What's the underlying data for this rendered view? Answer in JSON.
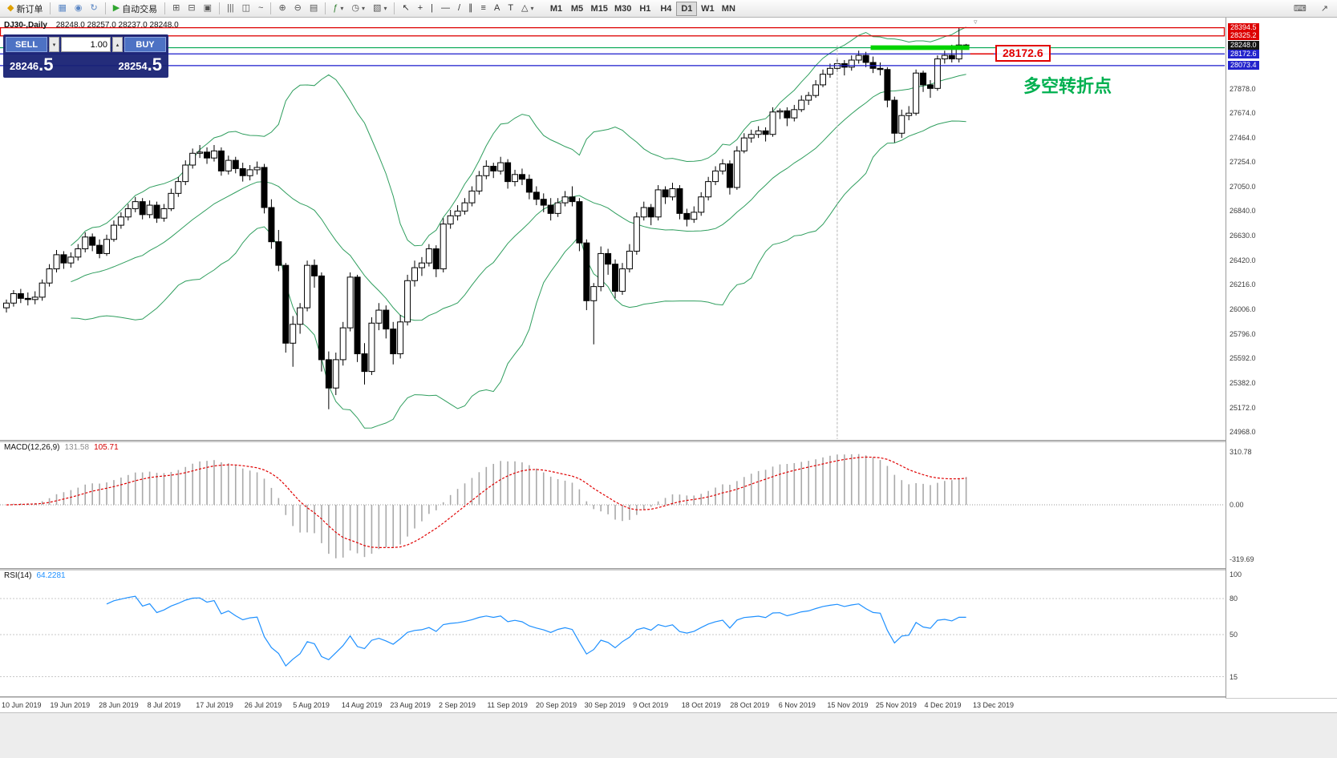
{
  "toolbar": {
    "groups": [
      {
        "items": [
          {
            "name": "new-order-button",
            "icon": "new-order-icon",
            "glyph": "◆",
            "glyph_color": "#dfa000",
            "label": "新订单"
          }
        ]
      },
      {
        "items": [
          {
            "name": "new-chart-button",
            "icon": "chart-window-icon",
            "glyph": "▦",
            "glyph_color": "#5b87c5"
          },
          {
            "name": "profiles-button",
            "icon": "globe-icon",
            "glyph": "◉",
            "glyph_color": "#5b87c5"
          },
          {
            "name": "refresh-button",
            "icon": "refresh-icon",
            "glyph": "↻",
            "glyph_color": "#5b87c5"
          }
        ]
      },
      {
        "items": [
          {
            "name": "autotrading-button",
            "icon": "autotrading-play-icon",
            "glyph": "▶",
            "glyph_color": "#2fa52f",
            "label": "自动交易"
          }
        ]
      },
      {
        "items": [
          {
            "name": "tile-windows-button",
            "icon": "tile-windows-icon",
            "glyph": "⊞",
            "glyph_color": "#555555"
          },
          {
            "name": "tile-horizontal-button",
            "icon": "tile-horizontal-icon",
            "glyph": "⊟",
            "glyph_color": "#555555"
          },
          {
            "name": "cascade-windows-button",
            "icon": "cascade-icon",
            "glyph": "▣",
            "glyph_color": "#555555"
          }
        ]
      },
      {
        "items": [
          {
            "name": "bar-chart-button",
            "icon": "bar-chart-icon",
            "glyph": "|||",
            "glyph_color": "#555555"
          },
          {
            "name": "candlestick-chart-button",
            "icon": "candlestick-icon",
            "glyph": "◫",
            "glyph_color": "#555555"
          },
          {
            "name": "line-chart-button",
            "icon": "line-chart-icon",
            "glyph": "~",
            "glyph_color": "#555555"
          }
        ]
      },
      {
        "items": [
          {
            "name": "zoom-in-button",
            "icon": "zoom-in-icon",
            "glyph": "⊕",
            "glyph_color": "#555555"
          },
          {
            "name": "zoom-out-button",
            "icon": "zoom-out-icon",
            "glyph": "⊖",
            "glyph_color": "#555555"
          },
          {
            "name": "grid-button",
            "icon": "grid-icon",
            "glyph": "▤",
            "glyph_color": "#555555"
          }
        ]
      },
      {
        "items": [
          {
            "name": "indicators-button",
            "icon": "indicators-icon",
            "glyph": "ƒ",
            "glyph_color": "#2f7d2f",
            "caret": true
          },
          {
            "name": "periods-button",
            "icon": "clock-icon",
            "glyph": "◷",
            "glyph_color": "#555555",
            "caret": true
          },
          {
            "name": "templates-button",
            "icon": "template-icon",
            "glyph": "▧",
            "glyph_color": "#555555",
            "caret": true
          }
        ]
      },
      {
        "items": [
          {
            "name": "cursor-tool-button",
            "icon": "cursor-icon",
            "glyph": "↖",
            "glyph_color": "#333333"
          },
          {
            "name": "crosshair-tool-button",
            "icon": "crosshair-icon",
            "glyph": "+",
            "glyph_color": "#333333"
          },
          {
            "name": "vertical-line-tool-button",
            "icon": "vertical-line-icon",
            "glyph": "|",
            "glyph_color": "#333333"
          },
          {
            "name": "horizontal-line-tool-button",
            "icon": "horizontal-line-icon",
            "glyph": "—",
            "glyph_color": "#333333"
          },
          {
            "name": "trendline-tool-button",
            "icon": "trendline-icon",
            "glyph": "/",
            "glyph_color": "#333333"
          },
          {
            "name": "channel-tool-button",
            "icon": "channel-icon",
            "glyph": "∥",
            "glyph_color": "#333333"
          },
          {
            "name": "fibonacci-tool-button",
            "icon": "fibonacci-icon",
            "glyph": "≡",
            "glyph_color": "#333333"
          },
          {
            "name": "text-tool-button",
            "icon": "text-icon",
            "glyph": "A",
            "glyph_color": "#333333"
          },
          {
            "name": "label-tool-button",
            "icon": "label-icon",
            "glyph": "T",
            "glyph_color": "#333333"
          },
          {
            "name": "shapes-tool-button",
            "icon": "shapes-icon",
            "glyph": "△",
            "glyph_color": "#333333",
            "caret": true
          }
        ]
      }
    ],
    "timeframes": [
      {
        "label": "M1"
      },
      {
        "label": "M5"
      },
      {
        "label": "M15"
      },
      {
        "label": "M30"
      },
      {
        "label": "H1"
      },
      {
        "label": "H4"
      },
      {
        "label": "D1",
        "active": true
      },
      {
        "label": "W1"
      },
      {
        "label": "MN"
      }
    ],
    "right_icons": [
      {
        "name": "print-button",
        "icon": "print-icon",
        "glyph": "⌨"
      },
      {
        "name": "fullscreen-button",
        "icon": "fullscreen-icon",
        "glyph": "↗"
      }
    ]
  },
  "order_panel": {
    "sell_label": "SELL",
    "buy_label": "BUY",
    "volume": "1.00",
    "volume_down_glyph": "▾",
    "volume_up_glyph": "▴",
    "sell_price_main": "28246",
    "sell_price_big": ".5",
    "buy_price_main": "28254",
    "buy_price_big": ".5"
  },
  "chart_info": {
    "symbol_period": "DJ30-,Daily",
    "ohlc": "28248.0 28257.0 28237.0 28248.0"
  },
  "macd_panel": {
    "name": "MACD(12,26,9)",
    "main_value": "131.58",
    "signal_value": "105.71"
  },
  "rsi_panel": {
    "name": "RSI(14)",
    "value": "64.2281"
  },
  "annotations": {
    "price_callout": "28172.6",
    "callout_color": "#e10000",
    "note": "多空转折点",
    "note_color": "#00b050",
    "shift_marker_glyph": "▿"
  },
  "chart_objects": {
    "red_box": {
      "price_top": 28394.5,
      "price_bottom": 28325.2,
      "color": "#dd0000"
    },
    "hlines": [
      {
        "price": 28225.0,
        "color": "#00a651"
      },
      {
        "price": 28172.6,
        "color": "#1a1acc"
      },
      {
        "price": 28073.4,
        "color": "#1a1acc"
      }
    ],
    "green_segment": {
      "price_top": 28245,
      "price_bottom": 28206,
      "from_bar": 121,
      "to_bar": 135,
      "color": "#00d300"
    },
    "vline_bar": 116,
    "vline_color": "#b4b4b4"
  },
  "chart_data": {
    "type": "candlestick",
    "symbol": "DJ30-",
    "period": "Daily",
    "current_ohlc": [
      28248.0,
      28257.0,
      28237.0,
      28248.0
    ],
    "y_range": [
      24900,
      28480
    ],
    "y_axis_labels": [
      "27878.0",
      "27674.0",
      "27464.0",
      "27254.0",
      "27050.0",
      "26840.0",
      "26630.0",
      "26420.0",
      "26216.0",
      "26006.0",
      "25796.0",
      "25592.0",
      "25382.0",
      "25172.0",
      "24968.0"
    ],
    "price_tags": [
      {
        "label": "28394.5",
        "price": 28394.5,
        "bg": "#dd0000"
      },
      {
        "label": "28325.2",
        "price": 28325.2,
        "bg": "#dd0000"
      },
      {
        "label": "28248.0",
        "price": 28248.0,
        "bg": "#151515"
      },
      {
        "label": "28172.6",
        "price": 28172.6,
        "bg": "#2323cc"
      },
      {
        "label": "28073.4",
        "price": 28073.4,
        "bg": "#2323cc"
      }
    ],
    "x_labels": [
      "10 Jun 2019",
      "19 Jun 2019",
      "28 Jun 2019",
      "8 Jul 2019",
      "17 Jul 2019",
      "26 Jul 2019",
      "5 Aug 2019",
      "14 Aug 2019",
      "23 Aug 2019",
      "2 Sep 2019",
      "11 Sep 2019",
      "20 Sep 2019",
      "30 Sep 2019",
      "9 Oct 2019",
      "18 Oct 2019",
      "28 Oct 2019",
      "6 Nov 2019",
      "15 Nov 2019",
      "25 Nov 2019",
      "4 Dec 2019",
      "13 Dec 2019"
    ],
    "candles": [
      [
        26020,
        26090,
        25980,
        26060
      ],
      [
        26060,
        26170,
        26030,
        26140
      ],
      [
        26140,
        26180,
        26060,
        26100
      ],
      [
        26100,
        26150,
        26040,
        26090
      ],
      [
        26090,
        26160,
        26050,
        26110
      ],
      [
        26110,
        26260,
        26080,
        26230
      ],
      [
        26230,
        26390,
        26200,
        26350
      ],
      [
        26350,
        26510,
        26320,
        26470
      ],
      [
        26470,
        26500,
        26350,
        26400
      ],
      [
        26400,
        26490,
        26360,
        26450
      ],
      [
        26450,
        26560,
        26420,
        26520
      ],
      [
        26520,
        26660,
        26490,
        26620
      ],
      [
        26620,
        26650,
        26500,
        26550
      ],
      [
        26550,
        26600,
        26440,
        26480
      ],
      [
        26480,
        26640,
        26460,
        26600
      ],
      [
        26600,
        26760,
        26580,
        26720
      ],
      [
        26720,
        26830,
        26690,
        26790
      ],
      [
        26790,
        26900,
        26760,
        26860
      ],
      [
        26860,
        26960,
        26830,
        26920
      ],
      [
        26920,
        26950,
        26770,
        26810
      ],
      [
        26810,
        26930,
        26780,
        26890
      ],
      [
        26890,
        26920,
        26740,
        26780
      ],
      [
        26780,
        26900,
        26750,
        26860
      ],
      [
        26860,
        27030,
        26840,
        26990
      ],
      [
        26990,
        27130,
        26960,
        27090
      ],
      [
        27090,
        27270,
        27060,
        27230
      ],
      [
        27230,
        27370,
        27200,
        27330
      ],
      [
        27330,
        27400,
        27290,
        27340
      ],
      [
        27340,
        27380,
        27240,
        27290
      ],
      [
        27290,
        27400,
        27260,
        27350
      ],
      [
        27350,
        27380,
        27140,
        27180
      ],
      [
        27180,
        27310,
        27150,
        27270
      ],
      [
        27270,
        27300,
        27160,
        27200
      ],
      [
        27200,
        27250,
        27090,
        27140
      ],
      [
        27140,
        27230,
        27100,
        27190
      ],
      [
        27190,
        27260,
        27150,
        27210
      ],
      [
        27210,
        27240,
        26820,
        26870
      ],
      [
        26870,
        26940,
        26520,
        26580
      ],
      [
        26580,
        26680,
        26330,
        26380
      ],
      [
        26380,
        26400,
        25640,
        25720
      ],
      [
        25720,
        25950,
        25520,
        25880
      ],
      [
        25880,
        26060,
        25800,
        26020
      ],
      [
        26020,
        26420,
        25990,
        26380
      ],
      [
        26380,
        26430,
        26190,
        26290
      ],
      [
        26290,
        26320,
        25480,
        25580
      ],
      [
        25580,
        25650,
        25160,
        25340
      ],
      [
        25340,
        25640,
        25280,
        25580
      ],
      [
        25580,
        25900,
        25530,
        25850
      ],
      [
        25850,
        26320,
        25820,
        26280
      ],
      [
        26280,
        26300,
        25560,
        25630
      ],
      [
        25630,
        25720,
        25370,
        25480
      ],
      [
        25480,
        25940,
        25450,
        25890
      ],
      [
        25890,
        26060,
        25830,
        26000
      ],
      [
        26000,
        26040,
        25760,
        25840
      ],
      [
        25840,
        25900,
        25540,
        25630
      ],
      [
        25630,
        25960,
        25590,
        25900
      ],
      [
        25900,
        26300,
        25870,
        26250
      ],
      [
        26250,
        26420,
        26200,
        26360
      ],
      [
        26360,
        26450,
        26290,
        26400
      ],
      [
        26400,
        26560,
        26370,
        26520
      ],
      [
        26520,
        26550,
        26280,
        26350
      ],
      [
        26350,
        26780,
        26320,
        26730
      ],
      [
        26730,
        26850,
        26690,
        26800
      ],
      [
        26800,
        26890,
        26760,
        26840
      ],
      [
        26840,
        26950,
        26810,
        26910
      ],
      [
        26910,
        27050,
        26880,
        27010
      ],
      [
        27010,
        27180,
        26980,
        27140
      ],
      [
        27140,
        27270,
        27110,
        27220
      ],
      [
        27220,
        27250,
        27120,
        27180
      ],
      [
        27180,
        27300,
        27150,
        27250
      ],
      [
        27250,
        27280,
        27030,
        27090
      ],
      [
        27090,
        27190,
        27050,
        27150
      ],
      [
        27150,
        27200,
        27060,
        27110
      ],
      [
        27110,
        27150,
        26940,
        27000
      ],
      [
        27000,
        27050,
        26890,
        26940
      ],
      [
        26940,
        26990,
        26830,
        26890
      ],
      [
        26890,
        26950,
        26760,
        26820
      ],
      [
        26820,
        26950,
        26790,
        26910
      ],
      [
        26910,
        27010,
        26880,
        26960
      ],
      [
        26960,
        27050,
        26880,
        26920
      ],
      [
        26920,
        26950,
        26500,
        26570
      ],
      [
        26570,
        26600,
        26000,
        26080
      ],
      [
        26080,
        26230,
        25710,
        26200
      ],
      [
        26200,
        26540,
        26160,
        26480
      ],
      [
        26480,
        26520,
        26300,
        26390
      ],
      [
        26390,
        26430,
        26100,
        26160
      ],
      [
        26160,
        26400,
        26130,
        26350
      ],
      [
        26350,
        26560,
        26320,
        26500
      ],
      [
        26500,
        26830,
        26470,
        26790
      ],
      [
        26790,
        26920,
        26760,
        26870
      ],
      [
        26870,
        26900,
        26720,
        26790
      ],
      [
        26790,
        27060,
        26760,
        27020
      ],
      [
        27020,
        27050,
        26900,
        26960
      ],
      [
        26960,
        27080,
        26930,
        27030
      ],
      [
        27030,
        27060,
        26770,
        26820
      ],
      [
        26820,
        26860,
        26710,
        26770
      ],
      [
        26770,
        26880,
        26740,
        26830
      ],
      [
        26830,
        27000,
        26800,
        26960
      ],
      [
        26960,
        27130,
        26930,
        27090
      ],
      [
        27090,
        27220,
        27060,
        27180
      ],
      [
        27180,
        27280,
        27150,
        27240
      ],
      [
        27240,
        27270,
        26980,
        27040
      ],
      [
        27040,
        27390,
        27020,
        27350
      ],
      [
        27350,
        27500,
        27330,
        27460
      ],
      [
        27460,
        27530,
        27420,
        27490
      ],
      [
        27490,
        27560,
        27460,
        27520
      ],
      [
        27520,
        27550,
        27430,
        27490
      ],
      [
        27490,
        27720,
        27470,
        27680
      ],
      [
        27680,
        27710,
        27620,
        27690
      ],
      [
        27690,
        27720,
        27560,
        27630
      ],
      [
        27630,
        27740,
        27600,
        27700
      ],
      [
        27700,
        27820,
        27680,
        27780
      ],
      [
        27780,
        27850,
        27740,
        27820
      ],
      [
        27820,
        27950,
        27800,
        27910
      ],
      [
        27910,
        28040,
        27890,
        28000
      ],
      [
        28000,
        28090,
        27970,
        28050
      ],
      [
        28050,
        28130,
        28020,
        28090
      ],
      [
        28090,
        28120,
        27990,
        28060
      ],
      [
        28060,
        28160,
        28030,
        28120
      ],
      [
        28120,
        28200,
        28090,
        28160
      ],
      [
        28160,
        28190,
        28060,
        28100
      ],
      [
        28100,
        28150,
        28010,
        28050
      ],
      [
        28050,
        28100,
        27990,
        28040
      ],
      [
        28040,
        28060,
        27720,
        27780
      ],
      [
        27780,
        27810,
        27420,
        27500
      ],
      [
        27500,
        27700,
        27460,
        27650
      ],
      [
        27650,
        27730,
        27610,
        27670
      ],
      [
        27670,
        28040,
        27650,
        28010
      ],
      [
        28010,
        28030,
        27850,
        27910
      ],
      [
        27910,
        27950,
        27800,
        27880
      ],
      [
        27880,
        28160,
        27860,
        28130
      ],
      [
        28130,
        28200,
        28090,
        28160
      ],
      [
        28160,
        28250,
        28100,
        28130
      ],
      [
        28130,
        28394,
        28100,
        28248
      ],
      [
        28248,
        28257,
        28237,
        28248
      ]
    ],
    "indicators": {
      "bollinger": {
        "period": 20,
        "deviation": 2.0,
        "color": "#2f9e5e"
      },
      "macd": {
        "fast": 12,
        "slow": 26,
        "signal": 9,
        "display_main": 131.58,
        "display_signal": 105.71,
        "axis_labels": [
          "310.78",
          "0.00",
          "-319.69"
        ],
        "axis_max": 310.78,
        "axis_min": -319.69,
        "hist_color": "#a9a9a9",
        "signal_color": "#e00000"
      },
      "rsi": {
        "period": 14,
        "display_value": 64.2281,
        "levels": [
          "100",
          "80",
          "50",
          "15"
        ],
        "color": "#1e90ff"
      }
    }
  }
}
